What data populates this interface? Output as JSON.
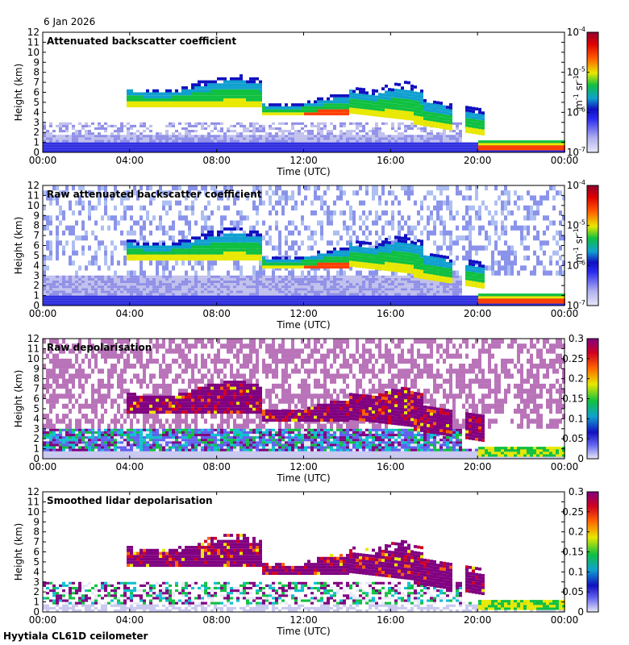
{
  "date": "6 Jan 2026",
  "footer": "Hyytiala CL61D ceilometer",
  "colors": {
    "frame": "#000000",
    "background": "#ffffff",
    "low_signal": "#c8c8f0",
    "purple": "#800080",
    "blue": "#2040ff",
    "green": "#10d040",
    "yellow": "#f0f000",
    "red": "#ff2000",
    "darkred": "#a00020"
  },
  "chart_data": [
    {
      "type": "heatmap",
      "title": "Attenuated backscatter coefficient",
      "xlabel": "Time (UTC)",
      "ylabel": "Height (km)",
      "x_ticks": [
        "00:00",
        "04:00",
        "08:00",
        "12:00",
        "16:00",
        "20:00",
        "00:00"
      ],
      "y_ticks": [
        "0",
        "1",
        "2",
        "3",
        "4",
        "5",
        "6",
        "7",
        "8",
        "9",
        "10",
        "11",
        "12"
      ],
      "xlim_hours": [
        0,
        24
      ],
      "ylim_km": [
        0,
        12
      ],
      "colorbar": {
        "scale": "log",
        "ticks": [
          "10^-7",
          "10^-6",
          "10^-5",
          "10^-4"
        ],
        "unit": "m^-1 sr^-1",
        "range": [
          1e-07,
          0.0001
        ]
      }
    },
    {
      "type": "heatmap",
      "title": "Raw attenuated backscatter coefficient",
      "xlabel": "Time (UTC)",
      "ylabel": "Height (km)",
      "x_ticks": [
        "00:00",
        "04:00",
        "08:00",
        "12:00",
        "16:00",
        "20:00",
        "00:00"
      ],
      "y_ticks": [
        "0",
        "1",
        "2",
        "3",
        "4",
        "5",
        "6",
        "7",
        "8",
        "9",
        "10",
        "11",
        "12"
      ],
      "xlim_hours": [
        0,
        24
      ],
      "ylim_km": [
        0,
        12
      ],
      "colorbar": {
        "scale": "log",
        "ticks": [
          "10^-7",
          "10^-6",
          "10^-5",
          "10^-4"
        ],
        "unit": "m^-1 sr^-1",
        "range": [
          1e-07,
          0.0001
        ]
      }
    },
    {
      "type": "heatmap",
      "title": "Raw depolarisation",
      "xlabel": "Time (UTC)",
      "ylabel": "Height (km)",
      "x_ticks": [
        "00:00",
        "04:00",
        "08:00",
        "12:00",
        "16:00",
        "20:00",
        "00:00"
      ],
      "y_ticks": [
        "0",
        "1",
        "2",
        "3",
        "4",
        "5",
        "6",
        "7",
        "8",
        "9",
        "10",
        "11",
        "12"
      ],
      "xlim_hours": [
        0,
        24
      ],
      "ylim_km": [
        0,
        12
      ],
      "colorbar": {
        "scale": "linear",
        "ticks": [
          "0",
          "0.05",
          "0.1",
          "0.15",
          "0.2",
          "0.25",
          "0.3"
        ],
        "range": [
          0,
          0.3
        ]
      }
    },
    {
      "type": "heatmap",
      "title": "Smoothed lidar depolarisation",
      "xlabel": "Time (UTC)",
      "ylabel": "Height (km)",
      "x_ticks": [
        "00:00",
        "04:00",
        "08:00",
        "12:00",
        "16:00",
        "20:00",
        "00:00"
      ],
      "y_ticks": [
        "0",
        "1",
        "2",
        "3",
        "4",
        "5",
        "6",
        "7",
        "8",
        "9",
        "10",
        "11",
        "12"
      ],
      "xlim_hours": [
        0,
        24
      ],
      "ylim_km": [
        0,
        12
      ],
      "colorbar": {
        "scale": "linear",
        "ticks": [
          "0",
          "0.05",
          "0.1",
          "0.15",
          "0.2",
          "0.25",
          "0.3"
        ],
        "range": [
          0,
          0.3
        ]
      }
    }
  ]
}
